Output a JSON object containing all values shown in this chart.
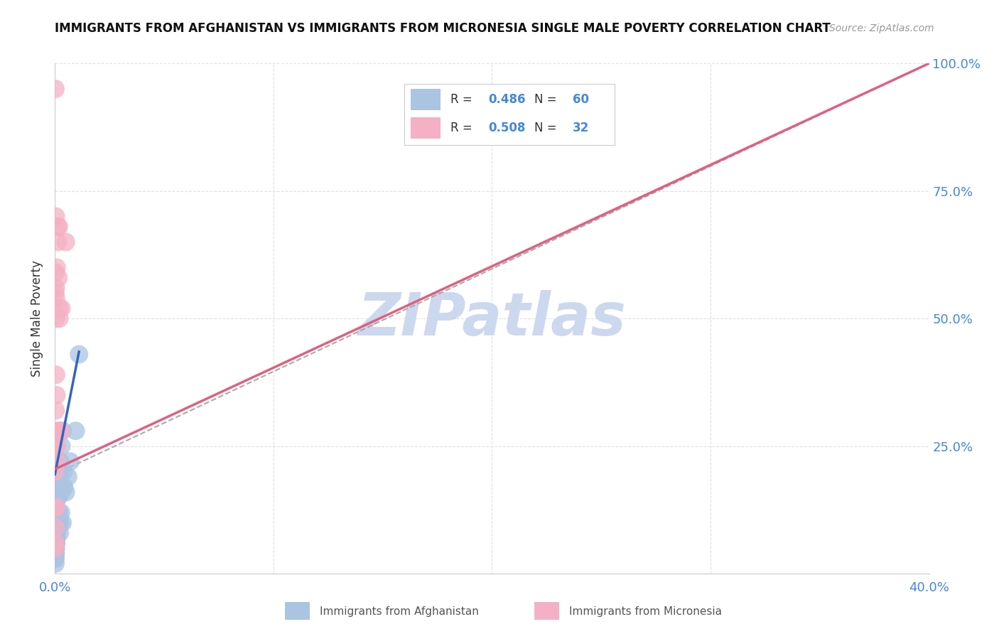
{
  "title": "IMMIGRANTS FROM AFGHANISTAN VS IMMIGRANTS FROM MICRONESIA SINGLE MALE POVERTY CORRELATION CHART",
  "source": "Source: ZipAtlas.com",
  "ylabel": "Single Male Poverty",
  "xlim": [
    0.0,
    0.4
  ],
  "ylim": [
    0.0,
    1.0
  ],
  "afghanistan_color": "#aac4e2",
  "micronesia_color": "#f4b0c4",
  "afghanistan_line_color": "#3366bb",
  "micronesia_line_color": "#e06080",
  "watermark": "ZIPatlas",
  "watermark_color": "#ccd8ee",
  "background_color": "#ffffff",
  "grid_color": "#dde0e8",
  "afghanistan_x": [
    0.0002,
    0.0003,
    0.0004,
    0.0005,
    0.0003,
    0.0002,
    0.0006,
    0.0004,
    0.0003,
    0.0002,
    0.0008,
    0.001,
    0.0007,
    0.0005,
    0.0012,
    0.0014,
    0.0009,
    0.0011,
    0.0007,
    0.0005,
    0.0015,
    0.002,
    0.0018,
    0.0013,
    0.0022,
    0.0025,
    0.003,
    0.0035,
    0.0028,
    0.004,
    0.0003,
    0.0002,
    0.0004,
    0.0006,
    0.0003,
    0.0002,
    0.0007,
    0.0009,
    0.0006,
    0.0004,
    0.001,
    0.0012,
    0.0008,
    0.0009,
    0.0006,
    0.0004,
    0.0003,
    0.0002,
    0.0014,
    0.0016,
    0.002,
    0.0025,
    0.003,
    0.0035,
    0.0042,
    0.005,
    0.006,
    0.007,
    0.0095,
    0.011
  ],
  "afghanistan_y": [
    0.05,
    0.08,
    0.1,
    0.12,
    0.15,
    0.18,
    0.1,
    0.12,
    0.08,
    0.06,
    0.2,
    0.15,
    0.12,
    0.18,
    0.22,
    0.2,
    0.15,
    0.18,
    0.1,
    0.08,
    0.15,
    0.19,
    0.12,
    0.15,
    0.08,
    0.1,
    0.16,
    0.1,
    0.12,
    0.2,
    0.05,
    0.03,
    0.06,
    0.07,
    0.04,
    0.02,
    0.08,
    0.09,
    0.06,
    0.05,
    0.12,
    0.1,
    0.08,
    0.1,
    0.07,
    0.06,
    0.04,
    0.03,
    0.15,
    0.18,
    0.2,
    0.22,
    0.25,
    0.28,
    0.17,
    0.16,
    0.19,
    0.22,
    0.28,
    0.43
  ],
  "micronesia_x": [
    0.0002,
    0.0003,
    0.0004,
    0.0005,
    0.0003,
    0.0002,
    0.0007,
    0.0008,
    0.0004,
    0.001,
    0.0013,
    0.0016,
    0.0019,
    0.0003,
    0.0004,
    0.0005,
    0.0002,
    0.0008,
    0.001,
    0.0013,
    0.0016,
    0.002,
    0.0025,
    0.0018,
    0.0003,
    0.0004,
    0.002,
    0.0005,
    0.0002,
    0.0003,
    0.005,
    0.003
  ],
  "micronesia_y": [
    0.55,
    0.59,
    0.56,
    0.54,
    0.25,
    0.2,
    0.35,
    0.6,
    0.5,
    0.28,
    0.65,
    0.28,
    0.52,
    0.13,
    0.7,
    0.39,
    0.05,
    0.25,
    0.22,
    0.68,
    0.58,
    0.275,
    0.28,
    0.68,
    0.06,
    0.09,
    0.5,
    0.13,
    0.95,
    0.32,
    0.65,
    0.52
  ],
  "afg_line_x0": 0.0,
  "afg_line_y0": 0.195,
  "afg_line_x1": 0.011,
  "afg_line_y1": 0.435,
  "mic_line_x0": 0.0,
  "mic_line_y0": 0.205,
  "mic_line_x1": 0.4,
  "mic_line_y1": 1.0,
  "dash_line_x0": 0.0,
  "dash_line_y0": 0.195,
  "dash_line_x1": 0.4,
  "dash_line_y1": 1.0
}
